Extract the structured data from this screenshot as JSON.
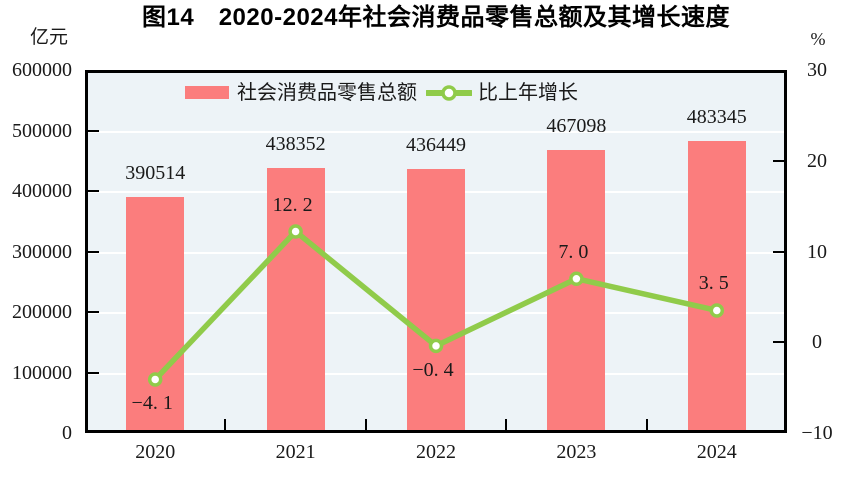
{
  "title": "图14　2020-2024年社会消费品零售总额及其增长速度",
  "legend": {
    "items": [
      {
        "label": "社会消费品零售总额",
        "swatch": "bar-swatch",
        "color": "#FB7D7D"
      },
      {
        "label": "比上年增长",
        "swatch": "line-marker-swatch",
        "color": "#90CB4A"
      }
    ]
  },
  "colors": {
    "bar": "#FB7D7D",
    "line": "#90CB4A",
    "marker_fill": "#FFFFFF",
    "plot_background": "#EDF3F7",
    "gridline": "#FFFFFF",
    "axis": "#000000",
    "text": "#1A1A1A"
  },
  "chart_data": {
    "type": "combo",
    "title": "图14　2020-2024年社会消费品零售总额及其增长速度",
    "categories": [
      "2020",
      "2021",
      "2022",
      "2023",
      "2024"
    ],
    "series": [
      {
        "name": "社会消费品零售总额",
        "type": "bar",
        "axis": "left",
        "values": [
          390514,
          438352,
          436449,
          467098,
          483345
        ],
        "value_labels": [
          "390514",
          "438352",
          "436449",
          "467098",
          "483345"
        ],
        "color": "#FB7D7D"
      },
      {
        "name": "比上年增长",
        "type": "line",
        "axis": "right",
        "values": [
          -4.1,
          12.2,
          -0.4,
          7.0,
          3.5
        ],
        "value_labels": [
          "−4. 1",
          "12. 2",
          "−0. 4",
          "7. 0",
          "3. 5"
        ],
        "color": "#90CB4A"
      }
    ],
    "left_axis": {
      "unit": "亿元",
      "min": 0,
      "max": 600000,
      "tick_step": 100000,
      "tick_labels": [
        "600000",
        "500000",
        "400000",
        "300000",
        "200000",
        "100000",
        "0"
      ]
    },
    "right_axis": {
      "unit": "%",
      "min": -10,
      "max": 30,
      "tick_step": 10,
      "tick_labels": [
        "30",
        "20",
        "10",
        "0",
        "−10"
      ]
    },
    "grid": "horizontal-white",
    "legend_position": "top-left-inside"
  }
}
